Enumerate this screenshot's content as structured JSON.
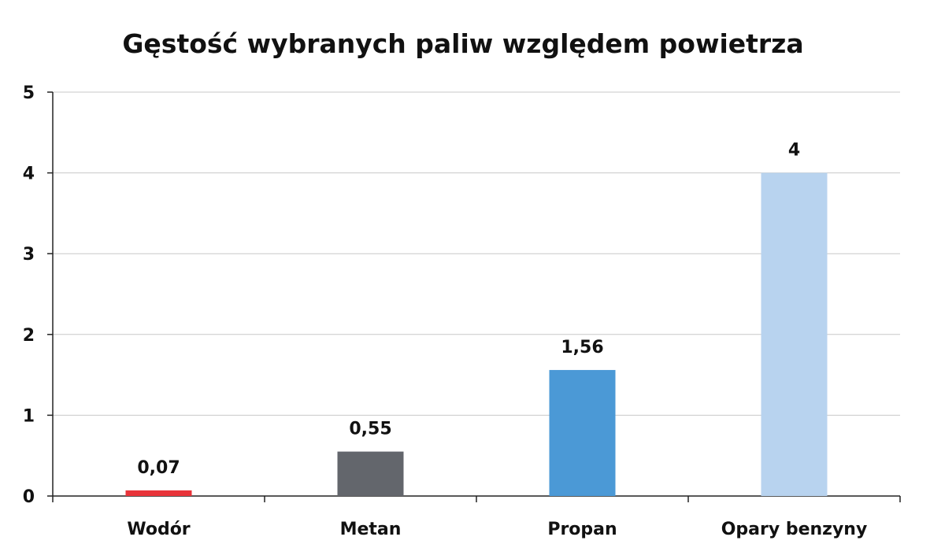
{
  "chart_data": {
    "type": "bar",
    "title": "Gęstość wybranych paliw względem powietrza",
    "xlabel": "",
    "ylabel": "",
    "categories": [
      "Wodór",
      "Metan",
      "Propan",
      "Opary benzyny"
    ],
    "values": [
      0.07,
      0.55,
      1.56,
      4
    ],
    "value_labels": [
      "0,07",
      "0,55",
      "1,56",
      "4"
    ],
    "bar_colors": [
      "#e8343a",
      "#63666c",
      "#4b99d6",
      "#b8d3ef"
    ],
    "ylim": [
      0,
      5
    ],
    "yticks": [
      0,
      1,
      2,
      3,
      4,
      5
    ],
    "ytick_labels": [
      "0",
      "1",
      "2",
      "3",
      "4",
      "5"
    ],
    "grid": true,
    "legend": "none"
  }
}
